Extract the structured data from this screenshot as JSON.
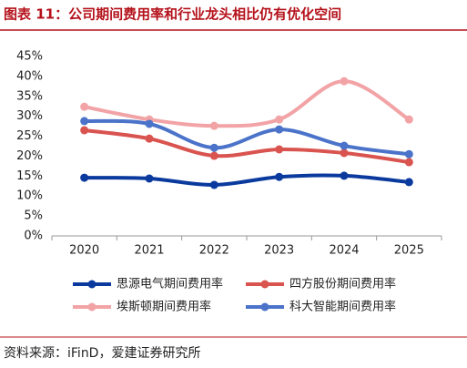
{
  "chart_data": {
    "type": "line",
    "title": "图表 11：公司期间费用率和行业龙头相比仍有优化空间",
    "source": "资料来源：iFinD，爱建证券研究所",
    "categories": [
      "2020",
      "2021",
      "2022",
      "2023",
      "2024",
      "2025"
    ],
    "series": [
      {
        "name": "思源电气期间费用率",
        "color": "#0b3a9e",
        "values": [
          14.6,
          14.4,
          12.8,
          14.8,
          15.1,
          13.5
        ]
      },
      {
        "name": "四方股份期间费用率",
        "color": "#d9534f",
        "values": [
          26.5,
          24.4,
          20.1,
          21.7,
          20.8,
          18.5
        ]
      },
      {
        "name": "埃斯顿期间费用率",
        "color": "#f2a3a6",
        "values": [
          32.4,
          29.2,
          27.6,
          29.2,
          38.8,
          29.2
        ]
      },
      {
        "name": "科大智能期间费用率",
        "color": "#4a73c9",
        "values": [
          28.8,
          28.1,
          22.1,
          26.7,
          22.6,
          20.5
        ]
      }
    ],
    "ylim": [
      0,
      45
    ],
    "yticks": [
      {
        "value": 0,
        "label": "0%"
      },
      {
        "value": 5,
        "label": "5%"
      },
      {
        "value": 10,
        "label": "10%"
      },
      {
        "value": 15,
        "label": "15%"
      },
      {
        "value": 20,
        "label": "20%"
      },
      {
        "value": 25,
        "label": "25%"
      },
      {
        "value": 30,
        "label": "30%"
      },
      {
        "value": 35,
        "label": "35%"
      },
      {
        "value": 40,
        "label": "40%"
      },
      {
        "value": 45,
        "label": "45%"
      }
    ],
    "grid": false,
    "smooth": true
  }
}
